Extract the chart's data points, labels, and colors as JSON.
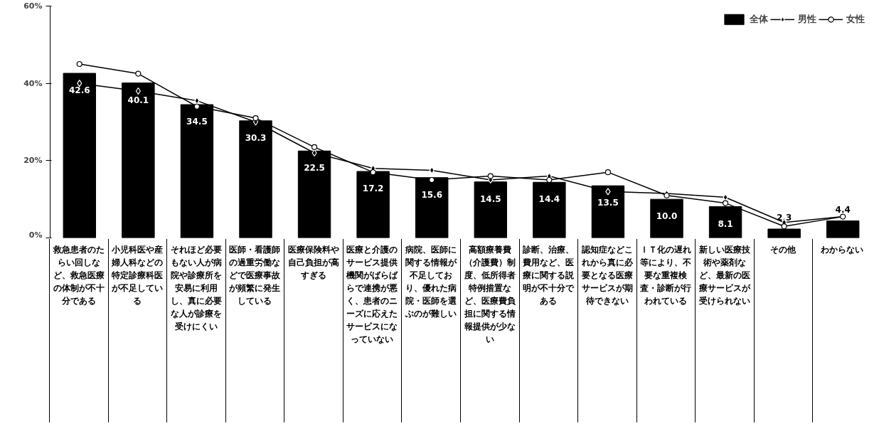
{
  "chart_data": {
    "type": "bar",
    "categories": [
      "救急患者のたらい回しなど、救急医療の体制が不十分である",
      "小児科医や産婦人科などの特定診療科医が不足している",
      "それほど必要もない人が病院や診療所を安易に利用し、真に必要な人が診療を受けにくい",
      "医師・看護師の過重労働などで医療事故が頻繁に発生している",
      "医療保険料や自己負担が高すぎる",
      "医療と介護のサービス提供機関がばらばらで連携が悪く、患者のニーズに応えたサービスになっていない",
      "病院、医師に関する情報が不足しており、優れた病院・医師を選ぶのが難しい",
      "高額療養費（介護費）制度、低所得者特例措置など、医療費負担に関する情報提供が少ない",
      "診断、治療、費用など、医療に関する説明が不十分である",
      "認知症などこれから真に必要となる医療サービスが期待できない",
      "ＩＴ化の遅れ等により、不要な重複検査・診断が行われている",
      "新しい医療技術や薬剤など、最新の医療サービスが受けられない",
      "その他",
      "わからない"
    ],
    "series": [
      {
        "name": "全体",
        "color": "#000000",
        "values": [
          42.6,
          40.1,
          34.5,
          30.3,
          22.5,
          17.2,
          15.6,
          14.5,
          14.4,
          13.5,
          10.0,
          8.1,
          2.3,
          4.4
        ],
        "value_labels": [
          "42.6",
          "40.1",
          "34.5",
          "30.3",
          "22.5",
          "17.2",
          "15.6",
          "14.5",
          "14.4",
          "13.5",
          "10.0",
          "8.1",
          "2.3",
          "4.4"
        ]
      },
      {
        "name": "男性",
        "type": "line",
        "marker": "diamond",
        "color": "#000000",
        "values": [
          40,
          38,
          35.5,
          30,
          22,
          18,
          17.5,
          15,
          16,
          12,
          11.5,
          10.5,
          4,
          5.5
        ]
      },
      {
        "name": "女性",
        "type": "line",
        "marker": "circle",
        "color": "#000000",
        "values": [
          45,
          42.5,
          34,
          31,
          23.5,
          17,
          15,
          16,
          15,
          17,
          11,
          9,
          3,
          5.5
        ]
      }
    ],
    "ylim": [
      0,
      60
    ],
    "yticks": [
      {
        "value": 0,
        "label": "0%"
      },
      {
        "value": 20,
        "label": "20%"
      },
      {
        "value": 40,
        "label": "40%"
      },
      {
        "value": 60,
        "label": "60%"
      }
    ],
    "legend": "top right",
    "grid": false
  }
}
